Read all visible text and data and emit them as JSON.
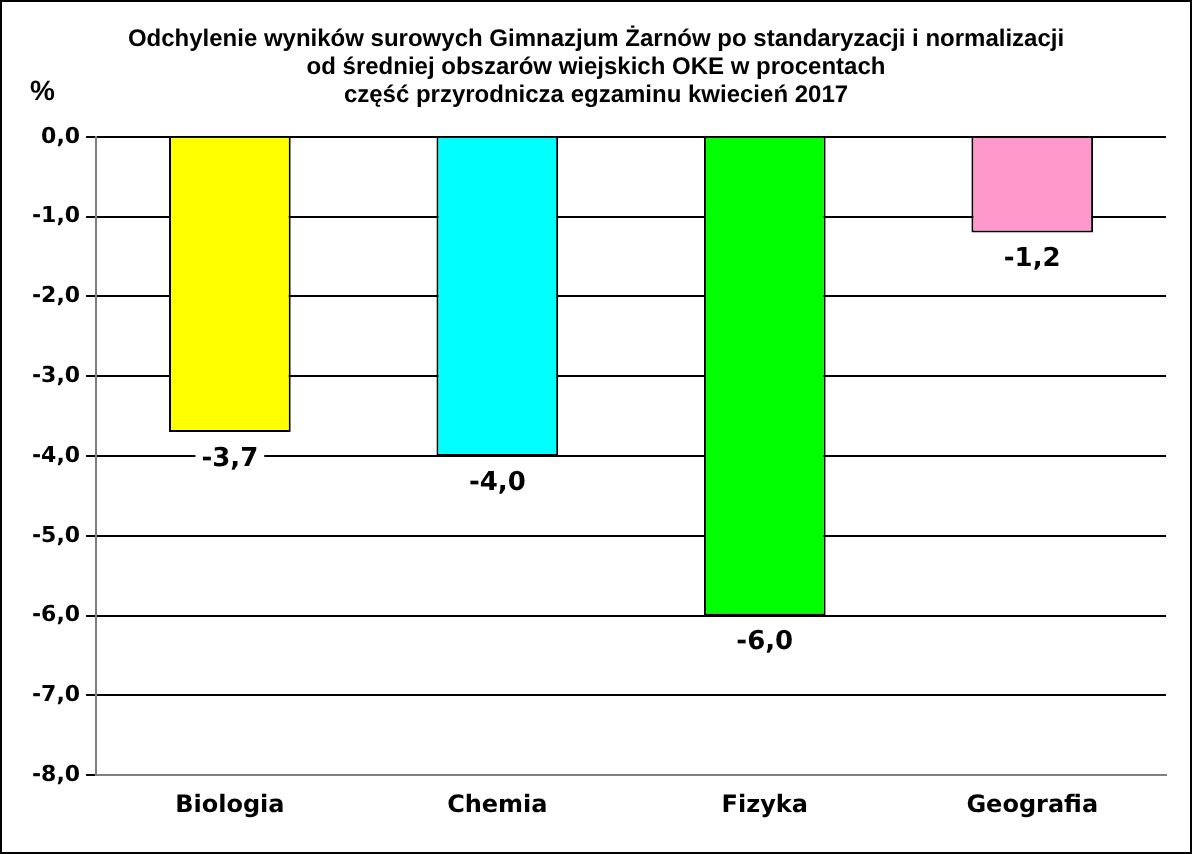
{
  "chart_data": {
    "type": "bar",
    "title": [
      "Odchylenie wyników surowych Gimnazjum Żarnów po standaryzacji i normalizacji",
      "od średniej obszarów wiejskich OKE w procentach",
      "część przyrodnicza egzaminu kwiecień 2017"
    ],
    "ylabel": "%",
    "categories": [
      "Biologia",
      "Chemia",
      "Fizyka",
      "Geografia"
    ],
    "values": [
      -3.7,
      -4.0,
      -6.0,
      -1.2
    ],
    "colors": [
      "#ffff00",
      "#00ffff",
      "#00ff00",
      "#ff99cc"
    ],
    "value_labels": [
      "-3,7",
      "-4,0",
      "-6,0",
      "-1,2"
    ],
    "ylim": [
      -8,
      0
    ],
    "yticks": [
      {
        "value": 0,
        "label": "0,0"
      },
      {
        "value": -1,
        "label": "-1,0"
      },
      {
        "value": -2,
        "label": "-2,0"
      },
      {
        "value": -3,
        "label": "-3,0"
      },
      {
        "value": -4,
        "label": "-4,0"
      },
      {
        "value": -5,
        "label": "-5,0"
      },
      {
        "value": -6,
        "label": "-6,0"
      },
      {
        "value": -7,
        "label": "-7,0"
      },
      {
        "value": -8,
        "label": "-8,0"
      }
    ],
    "grid": "y"
  }
}
